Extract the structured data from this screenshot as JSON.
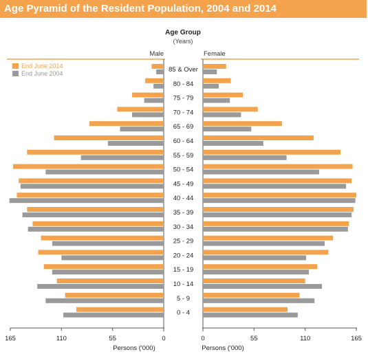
{
  "chart_data": {
    "type": "bar",
    "orientation": "horizontal-pyramid",
    "title": "Age Pyramid of the Resident Population, 2004 and 2014",
    "center_label": "Age Group",
    "center_unit": "(Years)",
    "left_panel_label": "Male",
    "right_panel_label": "Female",
    "xlabel": "Persons ('000)",
    "xlim": [
      0,
      165
    ],
    "left_ticks": [
      "165",
      "110",
      "55",
      "0"
    ],
    "right_ticks": [
      "0",
      "55",
      "110",
      "165"
    ],
    "legend_position": "top-left",
    "categories": [
      "85 & Over",
      "80 - 84",
      "75 - 79",
      "70 - 74",
      "65 - 69",
      "60 - 64",
      "55 - 59",
      "50 - 54",
      "45 - 49",
      "40 - 44",
      "35 - 39",
      "30 - 34",
      "25 - 29",
      "20 - 24",
      "15 - 19",
      "10 - 14",
      "5 - 9",
      "0 - 4"
    ],
    "series": [
      {
        "name": "End June 2014",
        "color": "#f5a24d",
        "male": [
          13,
          20,
          34,
          50,
          80,
          118,
          147,
          162,
          156,
          158,
          147,
          141,
          132,
          135,
          129,
          115,
          106,
          94
        ],
        "female": [
          25,
          30,
          43,
          59,
          85,
          119,
          148,
          161,
          160,
          165,
          162,
          157,
          140,
          135,
          123,
          110,
          104,
          91
        ]
      },
      {
        "name": "End June 2004",
        "color": "#9a9a9a",
        "male": [
          8,
          11,
          21,
          34,
          47,
          60,
          89,
          127,
          154,
          166,
          152,
          146,
          120,
          110,
          120,
          136,
          127,
          108
        ],
        "female": [
          15,
          17,
          29,
          41,
          52,
          65,
          90,
          125,
          154,
          164,
          160,
          156,
          131,
          111,
          114,
          128,
          120,
          102
        ]
      }
    ]
  }
}
